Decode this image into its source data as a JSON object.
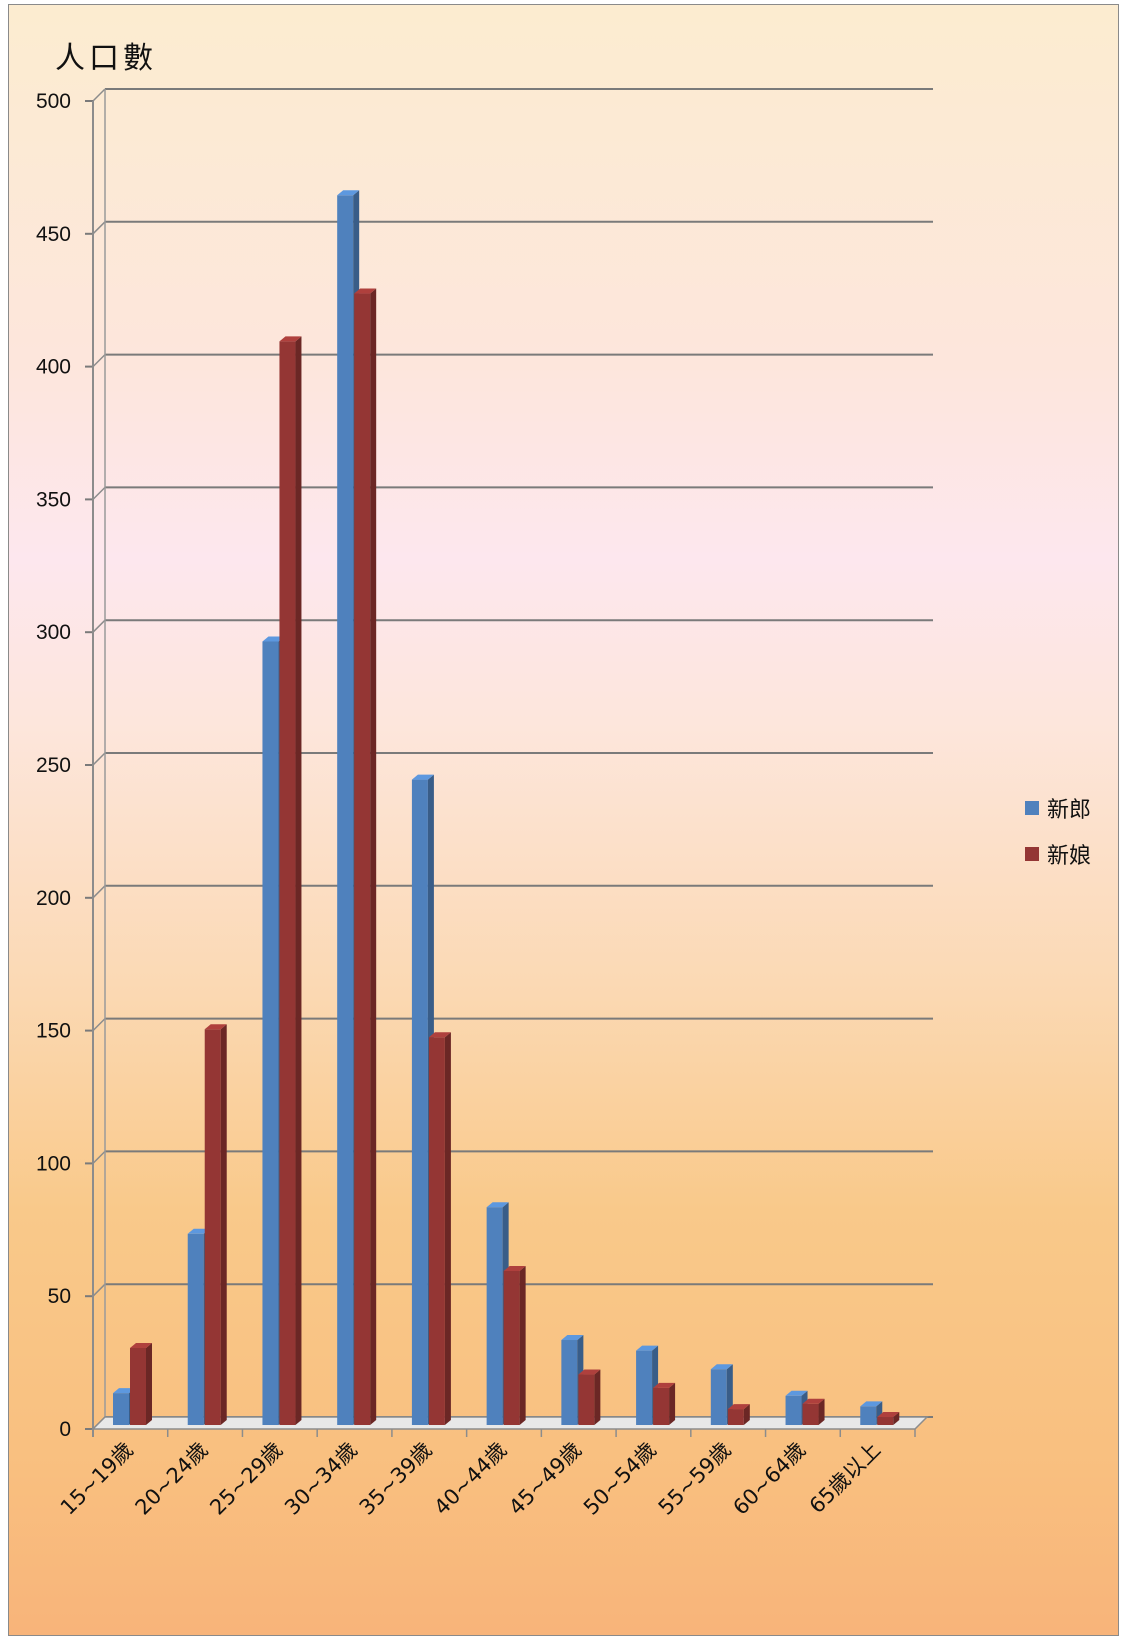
{
  "chart_data": {
    "type": "bar",
    "title": "人口數",
    "xlabel": "",
    "ylabel": "",
    "ylim": [
      0,
      500
    ],
    "yticks": [
      0,
      50,
      100,
      150,
      200,
      250,
      300,
      350,
      400,
      450,
      500
    ],
    "grid": true,
    "legend_position": "right",
    "categories": [
      "15~19歲",
      "20~24歲",
      "25~29歲",
      "30~34歲",
      "35~39歲",
      "40~44歲",
      "45~49歲",
      "50~54歲",
      "55~59歲",
      "60~64歲",
      "65歲以上"
    ],
    "series": [
      {
        "name": "新郎",
        "color": "#4f81bd",
        "values": [
          12,
          72,
          295,
          463,
          243,
          82,
          32,
          28,
          21,
          11,
          7
        ]
      },
      {
        "name": "新娘",
        "color": "#943634",
        "values": [
          29,
          149,
          408,
          426,
          146,
          58,
          19,
          14,
          6,
          8,
          3
        ]
      }
    ]
  }
}
